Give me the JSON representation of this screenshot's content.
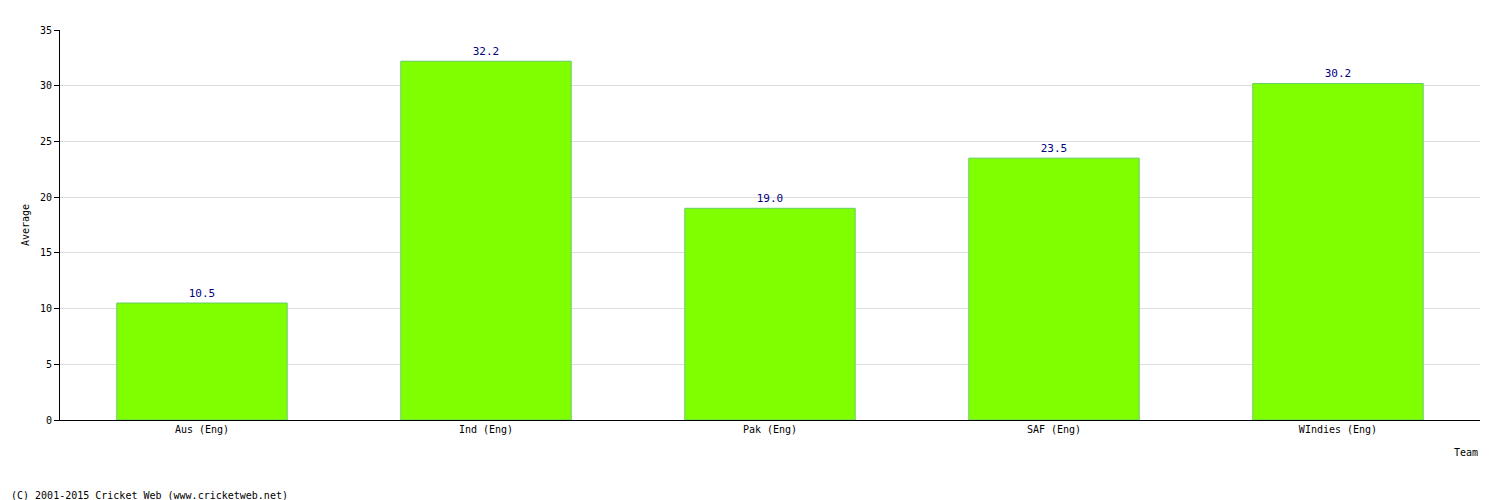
{
  "chart_data": {
    "type": "bar",
    "categories": [
      "Aus (Eng)",
      "Ind (Eng)",
      "Pak (Eng)",
      "SAF (Eng)",
      "WIndies (Eng)"
    ],
    "values": [
      10.5,
      32.2,
      19.0,
      23.5,
      30.2
    ],
    "value_labels": [
      "10.5",
      "32.2",
      "19.0",
      "23.5",
      "30.2"
    ],
    "color": "#7fff00",
    "x_label": "Team",
    "y_label": "Average",
    "ylim": [
      0,
      35
    ],
    "yticks": [
      0,
      5,
      10,
      15,
      20,
      25,
      30,
      35
    ],
    "grid": true,
    "data_labels": true,
    "annotations": [
      "(C) 2001-2015 Cricket Web (www.cricketweb.net)"
    ]
  }
}
